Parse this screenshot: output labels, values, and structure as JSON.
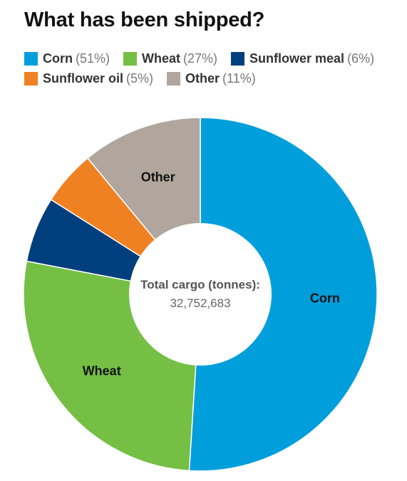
{
  "chart_data": {
    "type": "pie",
    "title": "What has been shipped?",
    "categories": [
      "Corn",
      "Wheat",
      "Sunflower meal",
      "Sunflower oil",
      "Other"
    ],
    "values": [
      51,
      27,
      6,
      5,
      11
    ],
    "value_labels": [
      "(51%)",
      "(27%)",
      "(6%)",
      "(5%)",
      "(11%)"
    ],
    "colors": [
      "#009fdb",
      "#74bf44",
      "#003f7d",
      "#f08122",
      "#b0a69e"
    ],
    "slice_labels": [
      "Corn",
      "Wheat",
      "",
      "",
      "Other"
    ],
    "donut": true,
    "legend_position": "top-left",
    "center": {
      "label": "Total cargo (tonnes):",
      "value": "32,752,683"
    }
  }
}
